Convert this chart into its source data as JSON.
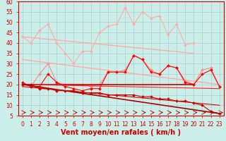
{
  "title": "",
  "xlabel": "Vent moyen/en rafales ( km/h )",
  "ylabel": "",
  "background_color": "#cceee8",
  "grid_color": "#aacccc",
  "xlim": [
    -0.5,
    23.5
  ],
  "ylim": [
    5,
    60
  ],
  "yticks": [
    5,
    10,
    15,
    20,
    25,
    30,
    35,
    40,
    45,
    50,
    55,
    60
  ],
  "xticks": [
    0,
    1,
    2,
    3,
    4,
    5,
    6,
    7,
    8,
    9,
    10,
    11,
    12,
    13,
    14,
    15,
    16,
    17,
    18,
    19,
    20,
    21,
    22,
    23
  ],
  "series": [
    {
      "x": [
        0,
        1,
        2,
        3,
        4,
        5,
        6,
        7,
        8,
        9,
        10,
        11,
        12,
        13,
        14,
        15,
        16,
        17,
        18,
        19,
        20
      ],
      "y": [
        43,
        40,
        46,
        49,
        40,
        35,
        30,
        36,
        36,
        45,
        48,
        49,
        57,
        49,
        55,
        52,
        53,
        44,
        49,
        39,
        40
      ],
      "color": "#ffaaaa",
      "marker": "D",
      "markersize": 2,
      "linewidth": 0.8,
      "linestyle": "-"
    },
    {
      "x": [
        0,
        20
      ],
      "y": [
        43,
        35
      ],
      "color": "#ffaaaa",
      "marker": null,
      "markersize": 0,
      "linewidth": 1.0,
      "linestyle": "-"
    },
    {
      "x": [
        0,
        1,
        2,
        3,
        4,
        5,
        6,
        7,
        8,
        9,
        10,
        11,
        12,
        13,
        14,
        15,
        16,
        17,
        18,
        19,
        20,
        21,
        22,
        23
      ],
      "y": [
        21,
        19,
        25,
        30,
        21,
        20,
        20,
        20,
        19,
        20,
        26,
        26,
        27,
        34,
        32,
        27,
        25,
        29,
        28,
        22,
        20,
        27,
        28,
        19
      ],
      "color": "#ff8888",
      "marker": "D",
      "markersize": 2,
      "linewidth": 0.8,
      "linestyle": "-"
    },
    {
      "x": [
        0,
        23
      ],
      "y": [
        32,
        20
      ],
      "color": "#ffaaaa",
      "marker": null,
      "markersize": 0,
      "linewidth": 1.0,
      "linestyle": "-"
    },
    {
      "x": [
        0,
        1,
        2,
        3,
        4,
        5,
        6,
        7,
        8,
        9,
        10,
        11,
        12,
        13,
        14,
        15,
        16,
        17,
        18,
        19,
        20,
        21,
        22,
        23
      ],
      "y": [
        21,
        19,
        19,
        25,
        21,
        19,
        18,
        17,
        18,
        18,
        26,
        26,
        26,
        34,
        32,
        26,
        25,
        29,
        28,
        21,
        20,
        25,
        27,
        19
      ],
      "color": "#ff0000",
      "marker": "D",
      "markersize": 2,
      "linewidth": 0.8,
      "linestyle": "-"
    },
    {
      "x": [
        0,
        20
      ],
      "y": [
        20,
        20
      ],
      "color": "#cc0000",
      "marker": null,
      "markersize": 0,
      "linewidth": 1.2,
      "linestyle": "-"
    },
    {
      "x": [
        0,
        23
      ],
      "y": [
        20,
        18
      ],
      "color": "#ff2222",
      "marker": null,
      "markersize": 0,
      "linewidth": 0.8,
      "linestyle": "-"
    },
    {
      "x": [
        0,
        1,
        2,
        3,
        4,
        5,
        6,
        7,
        8,
        9,
        10,
        11,
        12,
        13,
        14,
        15,
        16,
        17,
        18,
        19,
        20,
        21,
        22,
        23
      ],
      "y": [
        20,
        20,
        18,
        18,
        17,
        17,
        17,
        16,
        16,
        16,
        15,
        15,
        15,
        15,
        14,
        14,
        13,
        13,
        12,
        12,
        11,
        10,
        7,
        6
      ],
      "color": "#cc0000",
      "marker": "D",
      "markersize": 2,
      "linewidth": 0.8,
      "linestyle": "-"
    },
    {
      "x": [
        0,
        23
      ],
      "y": [
        20,
        6
      ],
      "color": "#aa0000",
      "marker": null,
      "markersize": 0,
      "linewidth": 1.2,
      "linestyle": "-"
    },
    {
      "x": [
        0,
        23
      ],
      "y": [
        19,
        10
      ],
      "color": "#dd0000",
      "marker": null,
      "markersize": 0,
      "linewidth": 0.8,
      "linestyle": "-"
    }
  ],
  "arrows": {
    "y_data": 6.5,
    "color": "#cc0000",
    "lw": 0.6
  },
  "xlabel_color": "#cc0000",
  "xlabel_fontsize": 7,
  "tick_label_color": "#cc0000",
  "tick_label_fontsize": 5.5
}
